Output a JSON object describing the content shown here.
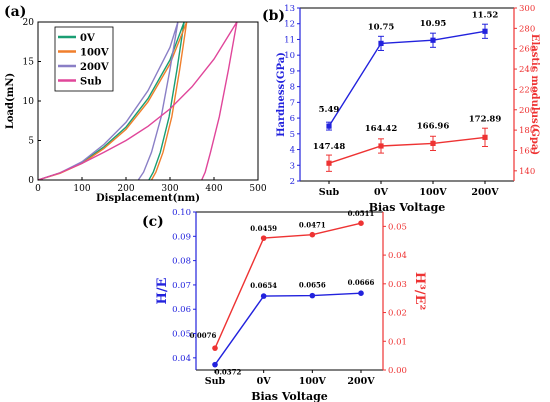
{
  "panels": {
    "a": {
      "label": "(a)"
    },
    "b": {
      "label": "(b)"
    },
    "c": {
      "label": "(c)"
    }
  },
  "chart_data": [
    {
      "type": "line",
      "panel": "(a)",
      "xlabel": "Displacement(nm)",
      "ylabel": "Load(mN)",
      "xlim": [
        0,
        500
      ],
      "ylim": [
        0,
        20
      ],
      "xticks": [
        0,
        100,
        200,
        300,
        400,
        500
      ],
      "yticks": [
        0,
        5,
        10,
        15,
        20
      ],
      "legend_position": "top-left",
      "series": [
        {
          "name": "0V",
          "color": "#1a9e73",
          "loading": [
            [
              0,
              0
            ],
            [
              50,
              0.9
            ],
            [
              100,
              2.2
            ],
            [
              150,
              4.2
            ],
            [
              200,
              6.7
            ],
            [
              250,
              10.3
            ],
            [
              300,
              15.2
            ],
            [
              332,
              20
            ]
          ],
          "unloading": [
            [
              332,
              20
            ],
            [
              316,
              14
            ],
            [
              298,
              8
            ],
            [
              278,
              3.5
            ],
            [
              262,
              1
            ],
            [
              252,
              0
            ]
          ]
        },
        {
          "name": "100V",
          "color": "#f07f2c",
          "loading": [
            [
              0,
              0
            ],
            [
              50,
              0.85
            ],
            [
              100,
              2.1
            ],
            [
              150,
              4
            ],
            [
              200,
              6.4
            ],
            [
              250,
              9.9
            ],
            [
              300,
              14.7
            ],
            [
              338,
              20
            ]
          ],
          "unloading": [
            [
              338,
              20
            ],
            [
              322,
              14
            ],
            [
              304,
              8
            ],
            [
              284,
              3.5
            ],
            [
              268,
              1
            ],
            [
              258,
              0
            ]
          ]
        },
        {
          "name": "200V",
          "color": "#8a7fc6",
          "loading": [
            [
              0,
              0
            ],
            [
              50,
              0.9
            ],
            [
              100,
              2.3
            ],
            [
              150,
              4.5
            ],
            [
              200,
              7.3
            ],
            [
              250,
              11.3
            ],
            [
              300,
              16.8
            ],
            [
              318,
              20
            ]
          ],
          "unloading": [
            [
              318,
              20
            ],
            [
              300,
              14
            ],
            [
              280,
              8
            ],
            [
              258,
              3.5
            ],
            [
              240,
              1
            ],
            [
              228,
              0
            ]
          ]
        },
        {
          "name": "Sub",
          "color": "#e0469a",
          "loading": [
            [
              0,
              0
            ],
            [
              50,
              0.9
            ],
            [
              100,
              2.1
            ],
            [
              150,
              3.5
            ],
            [
              200,
              5
            ],
            [
              250,
              6.8
            ],
            [
              300,
              9
            ],
            [
              350,
              11.8
            ],
            [
              400,
              15.3
            ],
            [
              452,
              20
            ]
          ],
          "unloading": [
            [
              452,
              20
            ],
            [
              433,
              14
            ],
            [
              412,
              8
            ],
            [
              392,
              3.5
            ],
            [
              380,
              1
            ],
            [
              372,
              0
            ]
          ]
        }
      ]
    },
    {
      "type": "line",
      "panel": "(b)",
      "xlabel": "Bias Voltage",
      "categories": [
        "Sub",
        "0V",
        "100V",
        "200V"
      ],
      "y_left": {
        "label": "Hardness(GPa)",
        "lim": [
          2,
          13
        ],
        "ticks": [
          2,
          3,
          4,
          5,
          6,
          7,
          8,
          9,
          10,
          11,
          12,
          13
        ],
        "color": "#2222dd"
      },
      "y_right": {
        "label": "Elastic modulus(Gpa)",
        "lim": [
          130,
          300
        ],
        "ticks": [
          140,
          160,
          180,
          200,
          220,
          240,
          260,
          280,
          300
        ],
        "color": "#ee3333"
      },
      "series": [
        {
          "axis": "left",
          "color": "#2222dd",
          "values": [
            5.49,
            10.75,
            10.95,
            11.52
          ],
          "errors": [
            0.25,
            0.45,
            0.45,
            0.45
          ],
          "labels": [
            "5.49",
            "10.75",
            "10.95",
            "11.52"
          ]
        },
        {
          "axis": "right",
          "color": "#ee3333",
          "values": [
            147.48,
            164.42,
            166.96,
            172.89
          ],
          "errors": [
            8,
            7,
            7,
            9
          ],
          "labels": [
            "147.48",
            "164.42",
            "166.96",
            "172.89"
          ]
        }
      ]
    },
    {
      "type": "line",
      "panel": "(c)",
      "xlabel": "Bias Voltage",
      "categories": [
        "Sub",
        "0V",
        "100V",
        "200V"
      ],
      "y_left": {
        "label": "H/E",
        "lim": [
          0.035,
          0.1
        ],
        "ticks": [
          0.04,
          0.05,
          0.06,
          0.07,
          0.08,
          0.09,
          0.1
        ],
        "tick_labels": [
          "0.04",
          "0.05",
          "0.06",
          "0.07",
          "0.08",
          "0.09",
          "0.10"
        ],
        "color": "#2222dd"
      },
      "y_right": {
        "label": "H³/E²",
        "lim": [
          0,
          0.055
        ],
        "ticks": [
          0,
          0.01,
          0.02,
          0.03,
          0.04,
          0.05
        ],
        "tick_labels": [
          "0.00",
          "0.01",
          "0.02",
          "0.03",
          "0.04",
          "0.05"
        ],
        "color": "#ee3333"
      },
      "series": [
        {
          "axis": "left",
          "color": "#2222dd",
          "values": [
            0.0372,
            0.0654,
            0.0656,
            0.0666
          ],
          "labels": [
            "0.0372",
            "0.0654",
            "0.0656",
            "0.0666"
          ]
        },
        {
          "axis": "right",
          "color": "#ee3333",
          "values": [
            0.0076,
            0.0459,
            0.0471,
            0.0511
          ],
          "labels": [
            "0.0076",
            "0.0459",
            "0.0471",
            "0.0511"
          ]
        }
      ]
    }
  ]
}
